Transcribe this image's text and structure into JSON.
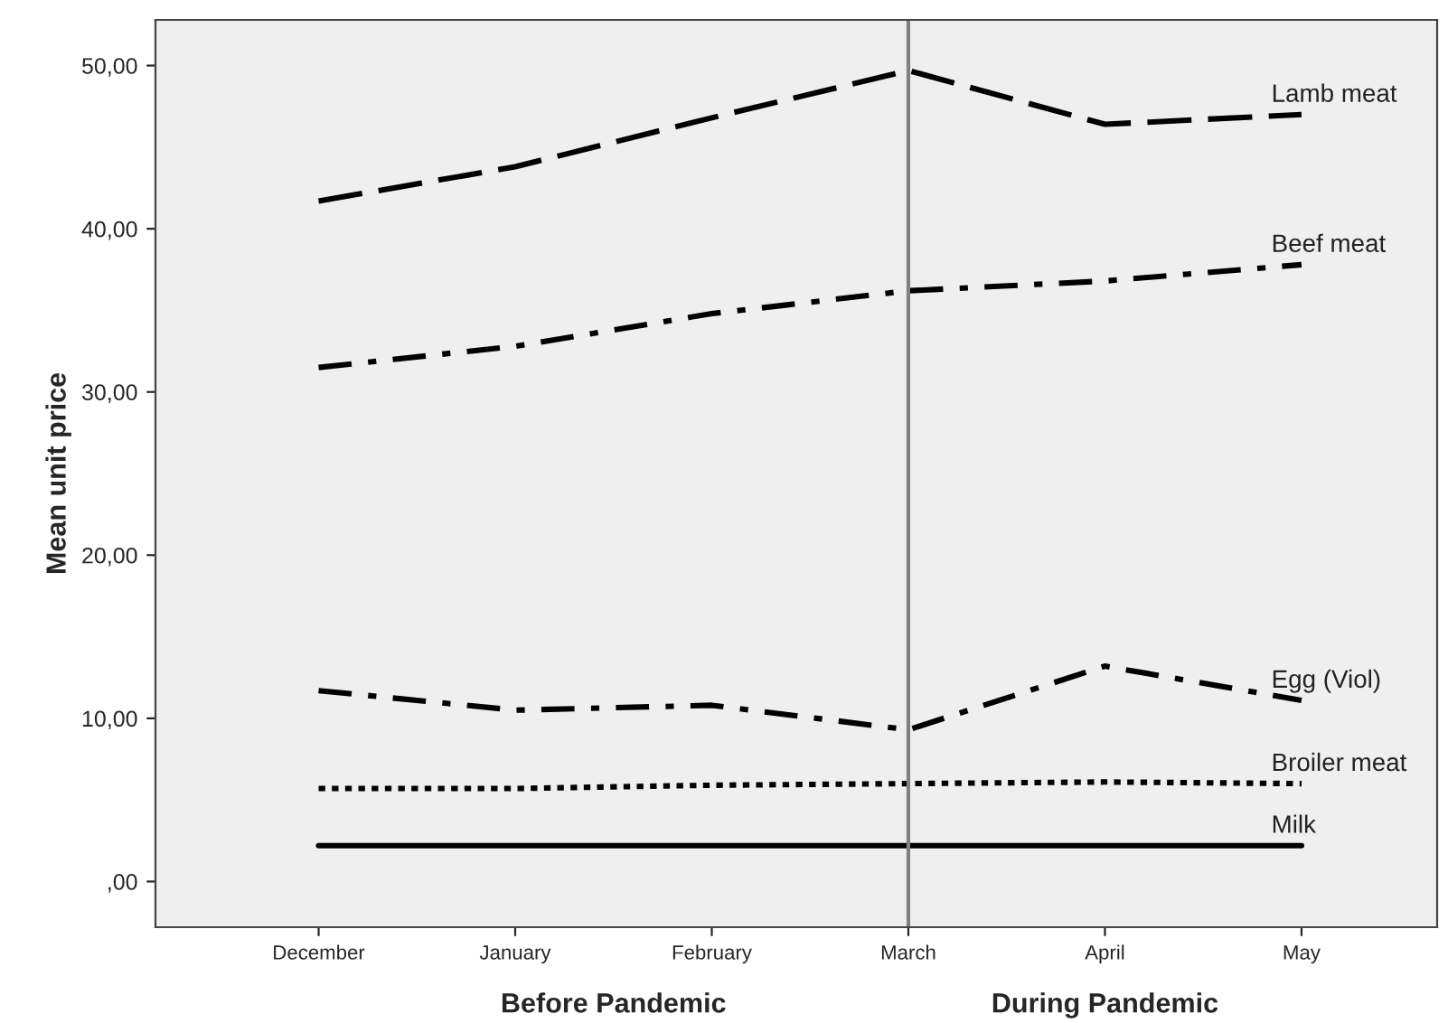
{
  "chart_data": {
    "type": "line",
    "ylabel": "Mean unit price",
    "categories": [
      "December",
      "January",
      "February",
      "March",
      "April",
      "May"
    ],
    "series": [
      {
        "name": "Lamb meat",
        "color": "#000000",
        "line_style": "dashed",
        "values": [
          41.7,
          43.8,
          46.8,
          49.7,
          46.4,
          47.0
        ]
      },
      {
        "name": "Beef meat",
        "color": "#000000",
        "line_style": "dashdot",
        "values": [
          31.5,
          32.8,
          34.8,
          36.2,
          36.8,
          37.8
        ]
      },
      {
        "name": "Egg (Viol)",
        "color": "#000000",
        "line_style": "dashdot",
        "values": [
          11.7,
          10.5,
          10.8,
          9.3,
          13.2,
          11.1
        ]
      },
      {
        "name": "Broiler meat",
        "color": "#000000",
        "line_style": "dotted",
        "values": [
          5.7,
          5.7,
          5.9,
          6.0,
          6.1,
          6.0
        ]
      },
      {
        "name": "Milk",
        "color": "#000000",
        "line_style": "solid",
        "values": [
          2.2,
          2.2,
          2.2,
          2.2,
          2.2,
          2.2
        ]
      }
    ],
    "ylim": [
      -2.8,
      52.8
    ],
    "yticks": [
      {
        "value": 0,
        "label": ",00"
      },
      {
        "value": 10,
        "label": "10,00"
      },
      {
        "value": 20,
        "label": "20,00"
      },
      {
        "value": 30,
        "label": "30,00"
      },
      {
        "value": 40,
        "label": "40,00"
      },
      {
        "value": 50,
        "label": "50,00"
      }
    ],
    "ref_lines": [
      {
        "axis": "x",
        "value": "March",
        "color": "#808080",
        "line_style": "solid"
      }
    ],
    "annotations": [
      "Before Pandemic",
      "During Pandemic"
    ],
    "grid": false,
    "legend": false,
    "marker": "none"
  }
}
